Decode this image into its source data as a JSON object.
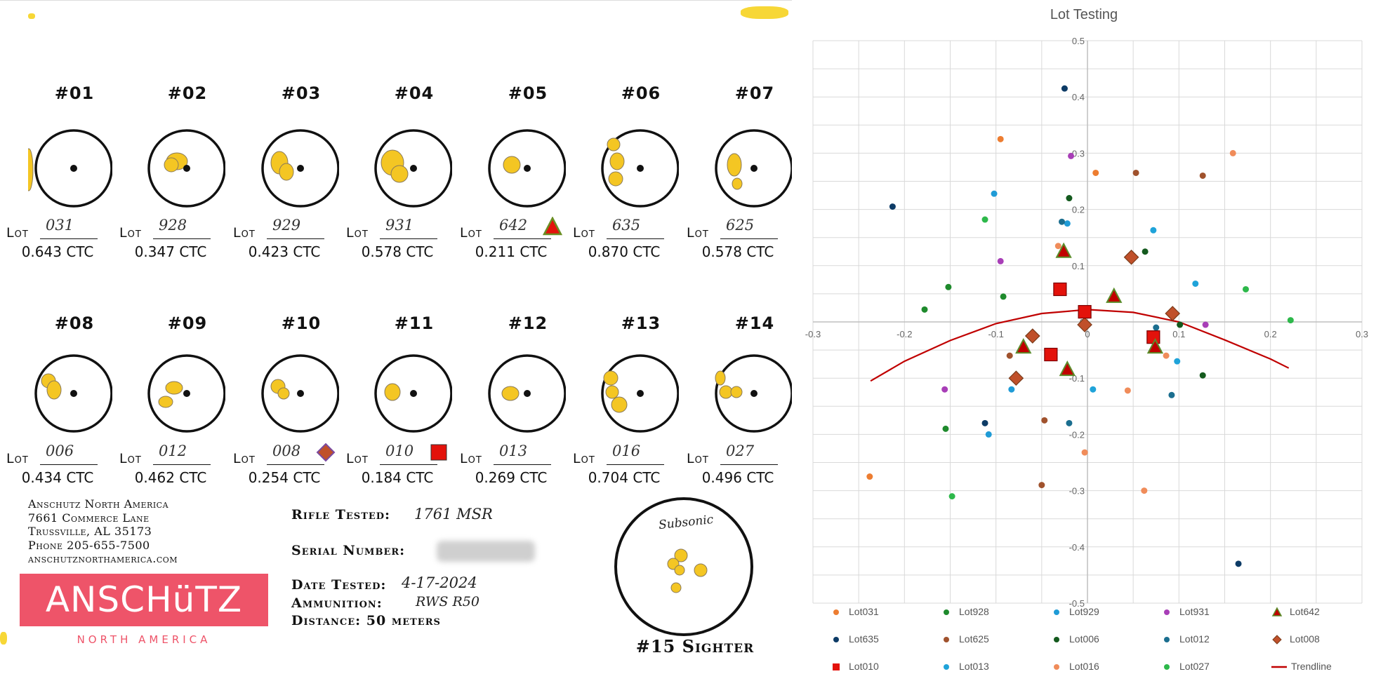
{
  "targets": [
    {
      "num": "#01",
      "lot_label": "Lot",
      "lot": "031",
      "ctc": "0.643 CTC",
      "marker": ""
    },
    {
      "num": "#02",
      "lot_label": "Lot",
      "lot": "928",
      "ctc": "0.347 CTC",
      "marker": ""
    },
    {
      "num": "#03",
      "lot_label": "Lot",
      "lot": "929",
      "ctc": "0.423 CTC",
      "marker": ""
    },
    {
      "num": "#04",
      "lot_label": "Lot",
      "lot": "931",
      "ctc": "0.578 CTC",
      "marker": ""
    },
    {
      "num": "#05",
      "lot_label": "Lot",
      "lot": "642",
      "ctc": "0.211 CTC",
      "marker": "triangle"
    },
    {
      "num": "#06",
      "lot_label": "Lot",
      "lot": "635",
      "ctc": "0.870 CTC",
      "marker": ""
    },
    {
      "num": "#07",
      "lot_label": "Lot",
      "lot": "625",
      "ctc": "0.578 CTC",
      "marker": ""
    },
    {
      "num": "#08",
      "lot_label": "Lot",
      "lot": "006",
      "ctc": "0.434 CTC",
      "marker": ""
    },
    {
      "num": "#09",
      "lot_label": "Lot",
      "lot": "012",
      "ctc": "0.462 CTC",
      "marker": ""
    },
    {
      "num": "#10",
      "lot_label": "Lot",
      "lot": "008",
      "ctc": "0.254 CTC",
      "marker": "diamond"
    },
    {
      "num": "#11",
      "lot_label": "Lot",
      "lot": "010",
      "ctc": "0.184 CTC",
      "marker": "square"
    },
    {
      "num": "#12",
      "lot_label": "Lot",
      "lot": "013",
      "ctc": "0.269 CTC",
      "marker": ""
    },
    {
      "num": "#13",
      "lot_label": "Lot",
      "lot": "016",
      "ctc": "0.704 CTC",
      "marker": ""
    },
    {
      "num": "#14",
      "lot_label": "Lot",
      "lot": "027",
      "ctc": "0.496 CTC",
      "marker": ""
    }
  ],
  "company": {
    "name": "Anschutz North America",
    "street": "7661 Commerce Lane",
    "city": "Trussville, AL 35173",
    "phone": "Phone 205-655-7500",
    "web": "anschutznorthamerica.com"
  },
  "logo": {
    "main": "ANSCHüTZ",
    "sub": "NORTH AMERICA"
  },
  "test_info": {
    "rifle_label": "Rifle Tested:",
    "rifle_value": "1761 MSR",
    "serial_label": "Serial Number:",
    "date_label": "Date Tested:",
    "date_value": "4-17-2024",
    "ammo_label": "Ammunition:",
    "ammo_value": "RWS R50",
    "distance_label": "Distance: 50 meters"
  },
  "sighter": {
    "note": "Subsonic",
    "caption": "#15 Sighter"
  },
  "colors": {
    "shot": "#f4c623",
    "logo": "#ee5469",
    "marker_red": "#e3120b",
    "marker_edge_green": "#6b8e23",
    "marker_diamond": "#c0502a",
    "trend": "#c00000"
  },
  "chart_data": {
    "type": "scatter",
    "title": "Lot Testing",
    "xlim": [
      -0.3,
      0.3
    ],
    "ylim": [
      -0.5,
      0.5
    ],
    "x_ticks": [
      "-0.3",
      "-0.2",
      "-0.1",
      "0",
      "0.1",
      "0.2",
      "0.3"
    ],
    "y_ticks": [
      "0.5",
      "0.4",
      "0.3",
      "0.2",
      "0.1",
      "0",
      "-0.1",
      "-0.2",
      "-0.3",
      "-0.4",
      "-0.5"
    ],
    "grid": true,
    "legend_position": "bottom",
    "series": [
      {
        "name": "Lot031",
        "color": "#ed7d31",
        "marker": "circle",
        "points": [
          [
            -0.095,
            0.325
          ],
          [
            -0.238,
            -0.275
          ],
          [
            0.009,
            0.265
          ]
        ]
      },
      {
        "name": "Lot928",
        "color": "#1e8a2c",
        "marker": "circle",
        "points": [
          [
            -0.178,
            0.022
          ],
          [
            -0.152,
            0.062
          ],
          [
            -0.092,
            0.045
          ],
          [
            -0.155,
            -0.19
          ]
        ]
      },
      {
        "name": "Lot929",
        "color": "#1f9bd6",
        "marker": "circle",
        "points": [
          [
            -0.102,
            0.228
          ],
          [
            -0.083,
            -0.12
          ],
          [
            -0.108,
            -0.2
          ],
          [
            -0.022,
            0.175
          ]
        ]
      },
      {
        "name": "Lot931",
        "color": "#a83eb7",
        "marker": "circle",
        "points": [
          [
            -0.018,
            0.295
          ],
          [
            -0.095,
            0.108
          ],
          [
            -0.156,
            -0.12
          ],
          [
            0.129,
            -0.005
          ]
        ]
      },
      {
        "name": "Lot642",
        "color": "#c00000",
        "marker": "triangle",
        "points": [
          [
            -0.026,
            0.125
          ],
          [
            0.029,
            0.045
          ],
          [
            -0.07,
            -0.045
          ],
          [
            -0.022,
            -0.085
          ],
          [
            0.074,
            -0.045
          ]
        ]
      },
      {
        "name": "Lot635",
        "color": "#0d3b66",
        "marker": "circle",
        "points": [
          [
            -0.213,
            0.205
          ],
          [
            -0.025,
            0.415
          ],
          [
            0.165,
            -0.43
          ],
          [
            -0.112,
            -0.18
          ]
        ]
      },
      {
        "name": "Lot625",
        "color": "#a0522d",
        "marker": "circle",
        "points": [
          [
            0.053,
            0.265
          ],
          [
            0.126,
            0.26
          ],
          [
            -0.047,
            -0.175
          ],
          [
            -0.085,
            -0.06
          ],
          [
            -0.05,
            -0.29
          ]
        ]
      },
      {
        "name": "Lot006",
        "color": "#145a1e",
        "marker": "circle",
        "points": [
          [
            -0.02,
            0.22
          ],
          [
            0.063,
            0.125
          ],
          [
            0.126,
            -0.095
          ],
          [
            -0.038,
            -0.06
          ],
          [
            0.101,
            -0.005
          ]
        ]
      },
      {
        "name": "Lot012",
        "color": "#1b6e8f",
        "marker": "circle",
        "points": [
          [
            -0.028,
            0.178
          ],
          [
            0.075,
            -0.01
          ],
          [
            0.092,
            -0.13
          ],
          [
            -0.02,
            -0.18
          ]
        ]
      },
      {
        "name": "Lot008",
        "color": "#c0502a",
        "marker": "diamond",
        "points": [
          [
            0.048,
            0.115
          ],
          [
            0.093,
            0.015
          ],
          [
            -0.06,
            -0.025
          ],
          [
            -0.003,
            -0.005
          ],
          [
            -0.078,
            -0.1
          ]
        ]
      },
      {
        "name": "Lot010",
        "color": "#e3120b",
        "marker": "square",
        "points": [
          [
            -0.03,
            0.058
          ],
          [
            -0.003,
            0.018
          ],
          [
            0.072,
            -0.027
          ],
          [
            -0.04,
            -0.058
          ]
        ]
      },
      {
        "name": "Lot013",
        "color": "#1fa3d9",
        "marker": "circle",
        "points": [
          [
            0.072,
            0.163
          ],
          [
            0.118,
            0.068
          ],
          [
            0.098,
            -0.07
          ],
          [
            0.006,
            -0.12
          ]
        ]
      },
      {
        "name": "Lot016",
        "color": "#f08c5a",
        "marker": "circle",
        "points": [
          [
            0.159,
            0.3
          ],
          [
            -0.032,
            0.135
          ],
          [
            0.086,
            -0.06
          ],
          [
            0.044,
            -0.122
          ],
          [
            -0.003,
            -0.232
          ],
          [
            0.062,
            -0.3
          ]
        ]
      },
      {
        "name": "Lot027",
        "color": "#2db84a",
        "marker": "circle",
        "points": [
          [
            -0.112,
            0.182
          ],
          [
            0.173,
            0.058
          ],
          [
            0.222,
            0.003
          ],
          [
            -0.148,
            -0.31
          ]
        ]
      }
    ],
    "trendline": {
      "name": "Trendline",
      "color": "#c00000",
      "type": "polynomial",
      "points": [
        [
          -0.237,
          -0.105
        ],
        [
          -0.2,
          -0.07
        ],
        [
          -0.15,
          -0.033
        ],
        [
          -0.1,
          -0.003
        ],
        [
          -0.05,
          0.015
        ],
        [
          0,
          0.022
        ],
        [
          0.05,
          0.017
        ],
        [
          0.1,
          0.0
        ],
        [
          0.15,
          -0.032
        ],
        [
          0.2,
          -0.066
        ],
        [
          0.22,
          -0.082
        ]
      ]
    }
  }
}
